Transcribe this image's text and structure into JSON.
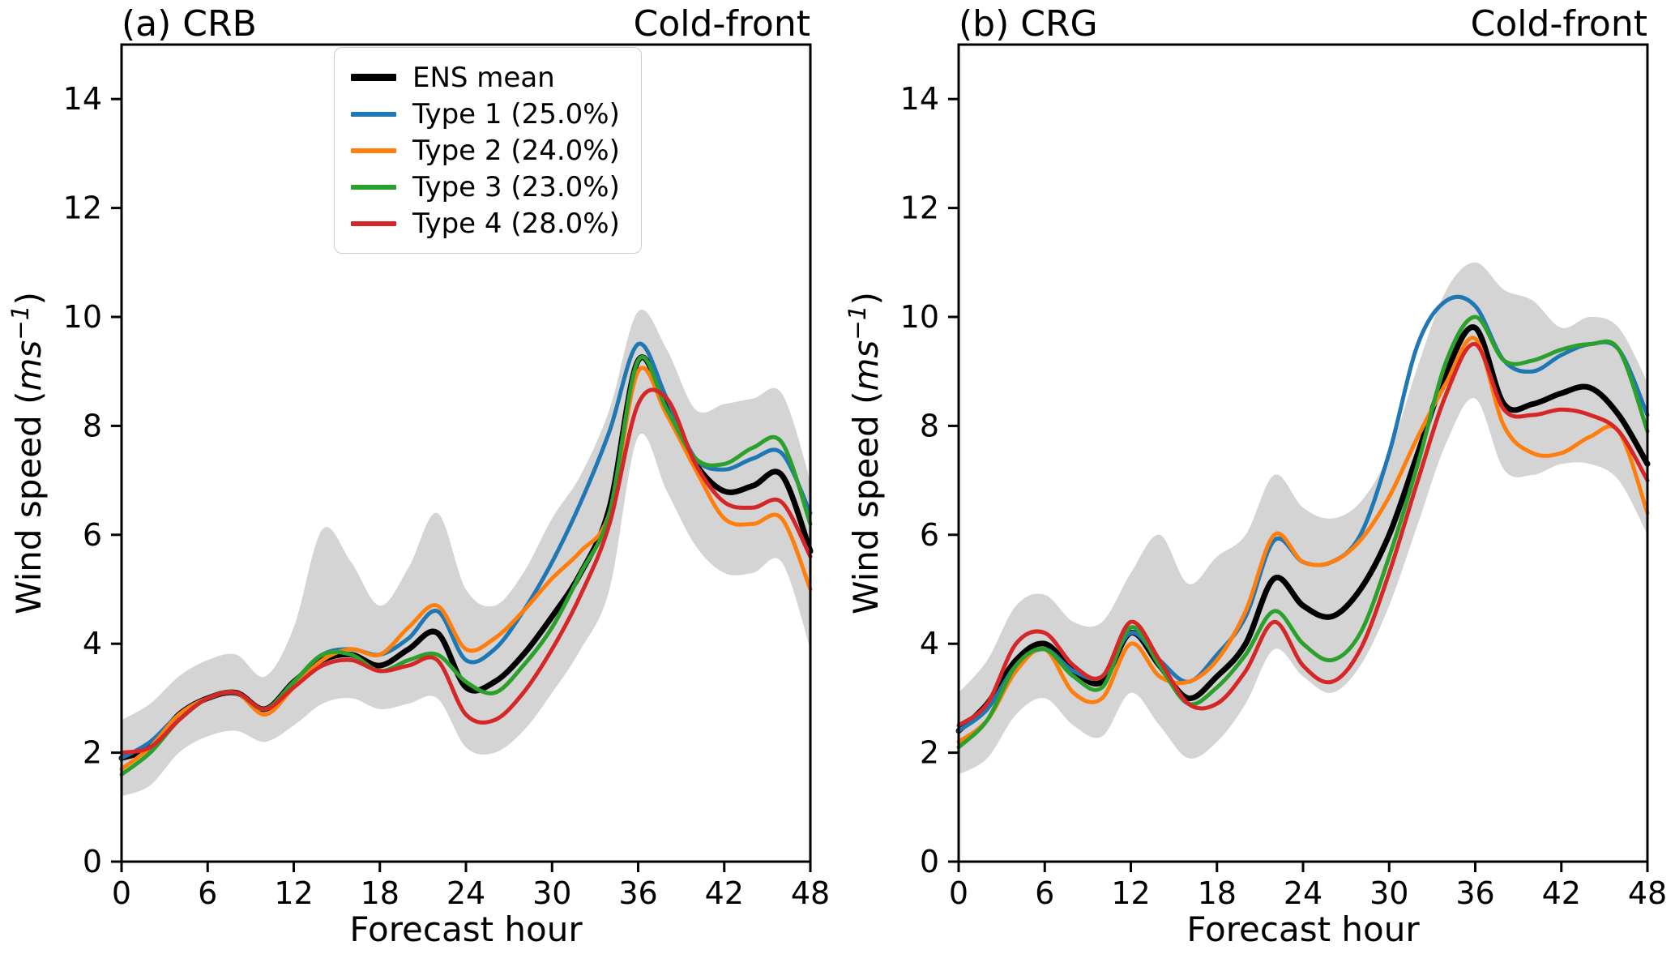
{
  "figure": {
    "event": "Cold-front",
    "stations": [
      "CRB",
      "CRG"
    ]
  },
  "chart_data": [
    {
      "type": "line",
      "panel_label": "(a) CRB",
      "event_label": "Cold-front",
      "xlabel": "Forecast hour",
      "ylabel": {
        "prefix": "Wind speed (",
        "math": "ms",
        "sup": "−1",
        "suffix": ")"
      },
      "xlim": [
        0,
        48
      ],
      "ylim": [
        0,
        15
      ],
      "xticks": [
        0,
        6,
        12,
        18,
        24,
        30,
        36,
        42,
        48
      ],
      "yticks": [
        0,
        2,
        4,
        6,
        8,
        10,
        12,
        14
      ],
      "grid": false,
      "legend_position": "upper-center-inset",
      "x": [
        0,
        2,
        4,
        6,
        8,
        10,
        12,
        14,
        16,
        18,
        20,
        22,
        24,
        26,
        28,
        30,
        32,
        34,
        36,
        38,
        40,
        42,
        44,
        46,
        48
      ],
      "band": {
        "name": "ensemble-spread",
        "color": "#d4d4d4",
        "lower": [
          1.2,
          1.4,
          2.0,
          2.3,
          2.4,
          2.2,
          2.5,
          2.9,
          3.0,
          2.8,
          2.9,
          3.0,
          2.1,
          2.0,
          2.4,
          3.1,
          3.9,
          5.0,
          7.8,
          6.8,
          5.8,
          5.3,
          5.3,
          5.5,
          3.9
        ],
        "upper": [
          2.6,
          2.9,
          3.4,
          3.7,
          3.8,
          3.4,
          4.3,
          6.1,
          5.5,
          4.7,
          5.4,
          6.4,
          5.0,
          4.7,
          5.3,
          6.3,
          7.1,
          8.3,
          10.1,
          9.4,
          8.3,
          8.4,
          8.5,
          8.6,
          7.0
        ]
      },
      "series": [
        {
          "name": "ENS mean",
          "color": "#000000",
          "width": 7,
          "values": [
            1.9,
            2.1,
            2.7,
            3.0,
            3.1,
            2.8,
            3.3,
            3.7,
            3.8,
            3.6,
            3.9,
            4.2,
            3.2,
            3.3,
            3.8,
            4.5,
            5.3,
            6.5,
            9.2,
            8.3,
            7.3,
            6.8,
            6.9,
            7.1,
            5.7
          ]
        },
        {
          "name": "Type 1 (25.0%)",
          "color": "#1f77b4",
          "width": 5,
          "values": [
            1.9,
            2.2,
            2.7,
            3.0,
            3.1,
            2.8,
            3.3,
            3.8,
            3.9,
            3.8,
            4.1,
            4.6,
            3.7,
            3.9,
            4.6,
            5.5,
            6.6,
            7.9,
            9.5,
            8.5,
            7.4,
            7.2,
            7.4,
            7.5,
            6.4
          ]
        },
        {
          "name": "Type 2 (24.0%)",
          "color": "#ff7f0e",
          "width": 5,
          "values": [
            1.7,
            2.1,
            2.7,
            3.0,
            3.1,
            2.7,
            3.2,
            3.7,
            3.9,
            3.8,
            4.3,
            4.7,
            3.9,
            4.1,
            4.6,
            5.2,
            5.7,
            6.4,
            9.0,
            8.2,
            7.2,
            6.3,
            6.2,
            6.3,
            5.0
          ]
        },
        {
          "name": "Type 3 (23.0%)",
          "color": "#2ca02c",
          "width": 5,
          "values": [
            1.6,
            2.0,
            2.6,
            3.0,
            3.1,
            2.8,
            3.3,
            3.8,
            3.8,
            3.5,
            3.7,
            3.8,
            3.3,
            3.1,
            3.6,
            4.3,
            5.3,
            6.4,
            9.2,
            8.3,
            7.4,
            7.3,
            7.6,
            7.7,
            6.2
          ]
        },
        {
          "name": "Type 4 (28.0%)",
          "color": "#d62728",
          "width": 5,
          "values": [
            2.0,
            2.1,
            2.6,
            3.0,
            3.1,
            2.8,
            3.2,
            3.6,
            3.7,
            3.5,
            3.6,
            3.7,
            2.7,
            2.6,
            3.1,
            3.9,
            4.9,
            6.2,
            8.4,
            8.5,
            7.3,
            6.6,
            6.5,
            6.6,
            5.6
          ]
        }
      ]
    },
    {
      "type": "line",
      "panel_label": "(b) CRG",
      "event_label": "Cold-front",
      "xlabel": "Forecast hour",
      "ylabel": {
        "prefix": "Wind speed (",
        "math": "ms",
        "sup": "−1",
        "suffix": ")"
      },
      "xlim": [
        0,
        48
      ],
      "ylim": [
        0,
        15
      ],
      "xticks": [
        0,
        6,
        12,
        18,
        24,
        30,
        36,
        42,
        48
      ],
      "yticks": [
        0,
        2,
        4,
        6,
        8,
        10,
        12,
        14
      ],
      "grid": false,
      "legend_position": "none",
      "x": [
        0,
        2,
        4,
        6,
        8,
        10,
        12,
        14,
        16,
        18,
        20,
        22,
        24,
        26,
        28,
        30,
        32,
        34,
        36,
        38,
        40,
        42,
        44,
        46,
        48
      ],
      "band": {
        "name": "ensemble-spread",
        "color": "#d4d4d4",
        "lower": [
          1.6,
          1.9,
          2.7,
          3.0,
          2.5,
          2.3,
          3.1,
          2.5,
          1.9,
          2.2,
          2.9,
          3.9,
          3.4,
          3.1,
          3.6,
          4.7,
          6.2,
          7.7,
          8.5,
          7.2,
          7.1,
          7.3,
          7.3,
          7.0,
          6.0
        ],
        "upper": [
          3.1,
          3.7,
          4.7,
          4.9,
          4.4,
          4.4,
          5.3,
          6.0,
          5.1,
          5.6,
          6.0,
          7.1,
          6.5,
          6.3,
          6.6,
          7.5,
          9.1,
          10.5,
          11.0,
          10.5,
          10.3,
          9.8,
          10.0,
          9.8,
          8.8
        ]
      },
      "series": [
        {
          "name": "ENS mean",
          "color": "#000000",
          "width": 7,
          "values": [
            2.4,
            2.9,
            3.7,
            4.0,
            3.5,
            3.3,
            4.2,
            3.6,
            3.0,
            3.4,
            4.0,
            5.2,
            4.7,
            4.5,
            5.0,
            6.0,
            7.5,
            9.0,
            9.8,
            8.4,
            8.4,
            8.6,
            8.7,
            8.2,
            7.3
          ]
        },
        {
          "name": "Type 1 (25.0%)",
          "color": "#1f77b4",
          "width": 5,
          "values": [
            2.4,
            2.8,
            3.6,
            3.9,
            3.5,
            3.4,
            4.2,
            3.7,
            3.3,
            3.8,
            4.5,
            5.9,
            5.5,
            5.5,
            6.0,
            7.5,
            9.5,
            10.3,
            10.2,
            9.2,
            9.0,
            9.3,
            9.5,
            9.4,
            8.2
          ]
        },
        {
          "name": "Type 2 (24.0%)",
          "color": "#ff7f0e",
          "width": 5,
          "values": [
            2.2,
            2.6,
            3.5,
            3.9,
            3.1,
            3.0,
            4.0,
            3.4,
            3.3,
            3.7,
            4.6,
            6.0,
            5.5,
            5.5,
            5.9,
            6.7,
            7.8,
            8.8,
            9.6,
            8.0,
            7.5,
            7.5,
            7.8,
            7.9,
            6.4
          ]
        },
        {
          "name": "Type 3 (23.0%)",
          "color": "#2ca02c",
          "width": 5,
          "values": [
            2.1,
            2.6,
            3.6,
            3.9,
            3.4,
            3.2,
            4.3,
            3.6,
            2.9,
            3.2,
            3.8,
            4.6,
            4.0,
            3.7,
            4.2,
            5.6,
            7.3,
            9.2,
            10.0,
            9.2,
            9.2,
            9.4,
            9.5,
            9.4,
            7.9
          ]
        },
        {
          "name": "Type 4 (28.0%)",
          "color": "#d62728",
          "width": 5,
          "values": [
            2.5,
            2.9,
            4.0,
            4.2,
            3.6,
            3.4,
            4.4,
            3.7,
            2.9,
            2.9,
            3.5,
            4.4,
            3.6,
            3.3,
            3.9,
            5.3,
            7.0,
            8.6,
            9.5,
            8.3,
            8.2,
            8.3,
            8.2,
            7.9,
            7.0
          ]
        }
      ]
    }
  ]
}
